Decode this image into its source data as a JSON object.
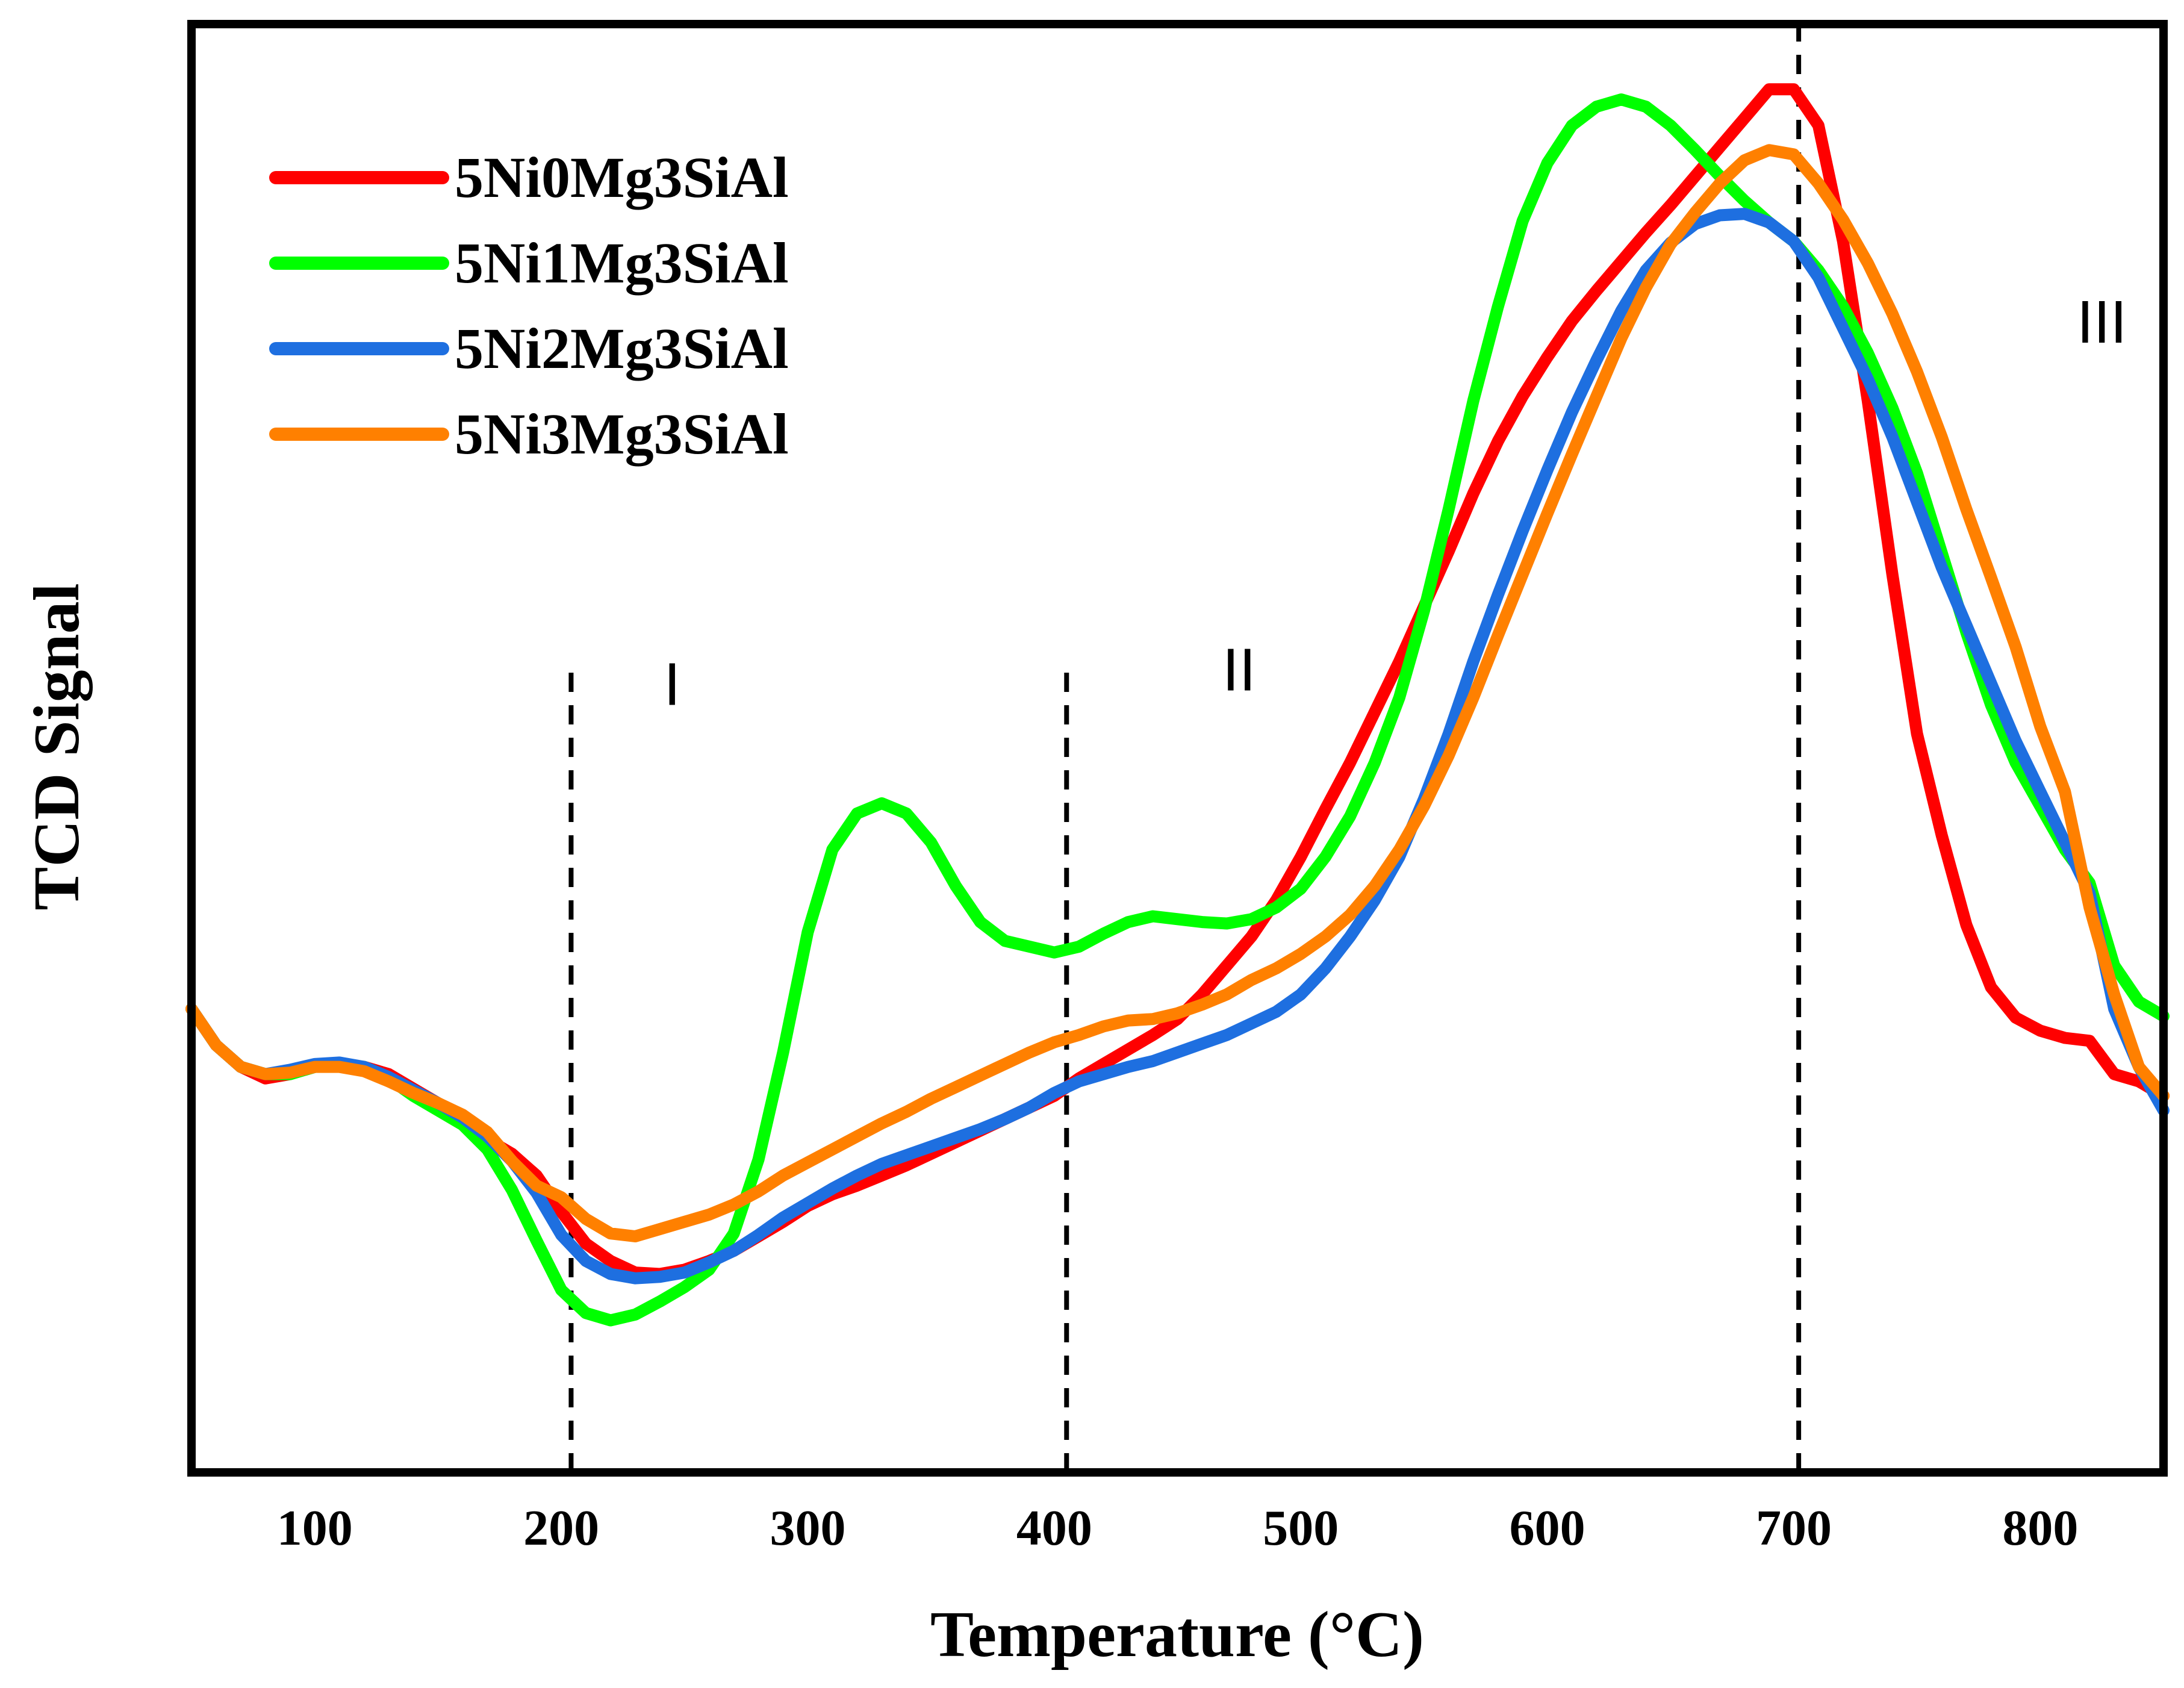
{
  "chart_data": {
    "type": "line",
    "title": "",
    "xlabel": "Temperature (°C)",
    "ylabel": "TCD Signal",
    "xlim": [
      50,
      850
    ],
    "ylim": [
      0,
      100
    ],
    "xticks": [
      100,
      200,
      300,
      400,
      500,
      600,
      700,
      800
    ],
    "yticks": [],
    "grid": false,
    "legend_position": "top-left",
    "vlines": [
      {
        "x": 204,
        "y_top": 56
      },
      {
        "x": 405,
        "y_top": 56
      },
      {
        "x": 702,
        "y_top": 100
      }
    ],
    "region_labels": [
      {
        "text": "I",
        "x": 245,
        "y": 53
      },
      {
        "text": "II",
        "x": 475,
        "y": 54
      },
      {
        "text": "III",
        "x": 825,
        "y": 78
      }
    ],
    "series": [
      {
        "name": "5Ni0Mg3SiAl",
        "color": "#ff0000",
        "x": [
          50,
          60,
          70,
          80,
          90,
          100,
          110,
          120,
          130,
          140,
          150,
          160,
          170,
          180,
          190,
          200,
          210,
          220,
          230,
          240,
          250,
          260,
          270,
          280,
          290,
          300,
          310,
          320,
          330,
          340,
          350,
          360,
          370,
          380,
          390,
          400,
          410,
          420,
          430,
          440,
          450,
          460,
          470,
          480,
          490,
          500,
          510,
          520,
          530,
          540,
          550,
          560,
          570,
          580,
          590,
          600,
          610,
          620,
          630,
          640,
          650,
          660,
          670,
          680,
          690,
          700,
          710,
          720,
          730,
          740,
          750,
          760,
          770,
          780,
          790,
          800,
          810,
          820,
          830,
          840,
          850
        ],
        "y": [
          32,
          29.5,
          28,
          27.2,
          27.5,
          28,
          28.2,
          28,
          27.5,
          26.5,
          25.5,
          24.5,
          23,
          22,
          20.5,
          18,
          15.8,
          14.6,
          13.8,
          13.7,
          14,
          14.6,
          15.3,
          16.3,
          17.3,
          18.4,
          19.2,
          19.8,
          20.5,
          21.2,
          22,
          22.8,
          23.6,
          24.4,
          25.2,
          26,
          27.2,
          28.2,
          29.2,
          30.2,
          31.3,
          33,
          35,
          37,
          39.5,
          42.5,
          45.8,
          49,
          52.5,
          56,
          59.8,
          63.6,
          67.6,
          71.2,
          74.3,
          77,
          79.5,
          81.6,
          83.6,
          85.6,
          87.5,
          89.5,
          91.5,
          93.5,
          95.5,
          95.5,
          93,
          85,
          74,
          62,
          51,
          44,
          37.8,
          33.5,
          31.4,
          30.5,
          30,
          29.8,
          27.5,
          27,
          26
        ]
      },
      {
        "name": "5Ni1Mg3SiAl",
        "color": "#00ff00",
        "x": [
          50,
          60,
          70,
          80,
          90,
          100,
          110,
          120,
          130,
          140,
          150,
          160,
          170,
          180,
          190,
          200,
          210,
          220,
          230,
          240,
          250,
          260,
          270,
          280,
          290,
          300,
          310,
          320,
          330,
          340,
          350,
          360,
          370,
          380,
          390,
          400,
          410,
          420,
          430,
          440,
          450,
          460,
          470,
          480,
          490,
          500,
          510,
          520,
          530,
          540,
          550,
          560,
          570,
          580,
          590,
          600,
          610,
          620,
          630,
          640,
          650,
          660,
          670,
          680,
          690,
          700,
          710,
          720,
          730,
          740,
          750,
          760,
          770,
          780,
          790,
          800,
          810,
          820,
          830,
          840,
          850
        ],
        "y": [
          32,
          29.5,
          28,
          27.5,
          27.5,
          28,
          28.2,
          28,
          27.2,
          26,
          25,
          24,
          22.3,
          19.5,
          16,
          12.6,
          11,
          10.5,
          10.9,
          11.8,
          12.8,
          14,
          16.5,
          21.6,
          29,
          37.3,
          43,
          45.5,
          46.2,
          45.5,
          43.5,
          40.5,
          38,
          36.7,
          36.3,
          35.9,
          36.3,
          37.2,
          38,
          38.4,
          38.2,
          38,
          37.9,
          38.2,
          39,
          40.3,
          42.5,
          45.3,
          49,
          53.5,
          59.5,
          66.5,
          74,
          80.5,
          86.4,
          90.4,
          93,
          94.3,
          94.8,
          94.3,
          93,
          91.3,
          89.5,
          87.8,
          86.3,
          85,
          83,
          80.5,
          77.3,
          73.5,
          69,
          63.5,
          58,
          53,
          49,
          46,
          43,
          40.7,
          35,
          32.5,
          31.5
        ]
      },
      {
        "name": "5Ni2Mg3SiAl",
        "color": "#1e6fe0",
        "x": [
          50,
          60,
          70,
          80,
          90,
          100,
          110,
          120,
          130,
          140,
          150,
          160,
          170,
          180,
          190,
          200,
          210,
          220,
          230,
          240,
          250,
          260,
          270,
          280,
          290,
          300,
          310,
          320,
          330,
          340,
          350,
          360,
          370,
          380,
          390,
          400,
          410,
          420,
          430,
          440,
          450,
          460,
          470,
          480,
          490,
          500,
          510,
          520,
          530,
          540,
          550,
          560,
          570,
          580,
          590,
          600,
          610,
          620,
          630,
          640,
          650,
          660,
          670,
          680,
          690,
          700,
          710,
          720,
          730,
          740,
          750,
          760,
          770,
          780,
          790,
          800,
          810,
          820,
          830,
          840,
          850
        ],
        "y": [
          32,
          29.5,
          28,
          27.5,
          27.8,
          28.2,
          28.3,
          28,
          27.3,
          26.4,
          25.5,
          24.5,
          23.2,
          21.5,
          19.3,
          16.4,
          14.6,
          13.7,
          13.4,
          13.5,
          13.8,
          14.5,
          15.3,
          16.4,
          17.6,
          18.6,
          19.6,
          20.5,
          21.3,
          21.9,
          22.5,
          23.1,
          23.7,
          24.4,
          25.2,
          26.2,
          27,
          27.5,
          28,
          28.4,
          29,
          29.6,
          30.2,
          31,
          31.8,
          33,
          34.8,
          37,
          39.5,
          42.5,
          46.5,
          51,
          56,
          60.6,
          65,
          69.2,
          73.2,
          76.8,
          80.2,
          83,
          84.9,
          86.2,
          86.8,
          86.9,
          86.3,
          85,
          82.5,
          79,
          75.5,
          71.5,
          67,
          62.5,
          58.5,
          54.5,
          50.5,
          47,
          43.5,
          40,
          32,
          28,
          25
        ]
      },
      {
        "name": "5Ni3Mg3SiAl",
        "color": "#ff8000",
        "x": [
          50,
          60,
          70,
          80,
          90,
          100,
          110,
          120,
          130,
          140,
          150,
          160,
          170,
          180,
          190,
          200,
          210,
          220,
          230,
          240,
          250,
          260,
          270,
          280,
          290,
          300,
          310,
          320,
          330,
          340,
          350,
          360,
          370,
          380,
          390,
          400,
          410,
          420,
          430,
          440,
          450,
          460,
          470,
          480,
          490,
          500,
          510,
          520,
          530,
          540,
          550,
          560,
          570,
          580,
          590,
          600,
          610,
          620,
          630,
          640,
          650,
          660,
          670,
          680,
          690,
          700,
          710,
          720,
          730,
          740,
          750,
          760,
          770,
          780,
          790,
          800,
          810,
          820,
          830,
          840,
          850
        ],
        "y": [
          32,
          29.5,
          28,
          27.5,
          27.6,
          28,
          28,
          27.7,
          27,
          26.2,
          25.5,
          24.7,
          23.5,
          21.5,
          19.8,
          19,
          17.5,
          16.5,
          16.3,
          16.8,
          17.3,
          17.8,
          18.5,
          19.4,
          20.5,
          21.4,
          22.3,
          23.2,
          24.1,
          24.9,
          25.8,
          26.6,
          27.4,
          28.2,
          29,
          29.7,
          30.2,
          30.8,
          31.2,
          31.3,
          31.7,
          32.3,
          33,
          34,
          34.8,
          35.8,
          37,
          38.5,
          40.5,
          43,
          46,
          49.5,
          53.5,
          57.8,
          62,
          66.2,
          70.3,
          74.3,
          78.3,
          81.8,
          84.8,
          87,
          89,
          90.6,
          91.3,
          91,
          89,
          86.5,
          83.5,
          80,
          76,
          71.5,
          66.5,
          61.8,
          57,
          51.5,
          47,
          39,
          33,
          28,
          26
        ]
      }
    ]
  }
}
